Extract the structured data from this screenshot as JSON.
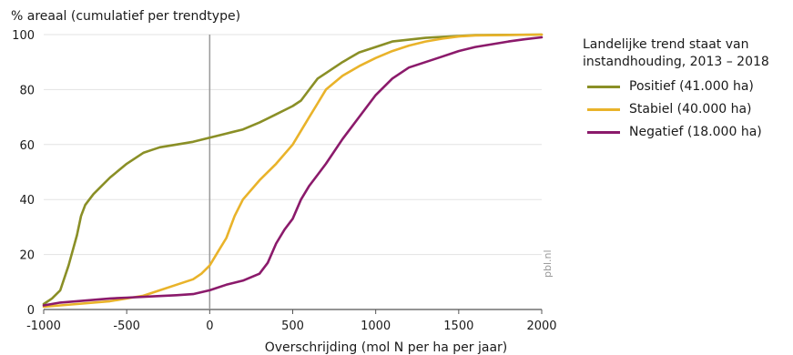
{
  "chart_data": {
    "type": "line",
    "title": "% areaal (cumulatief per trendtype)",
    "xlabel": "Overschrijding (mol N per ha per jaar)",
    "ylabel": "% areaal (cumulatief per trendtype)",
    "xlim": [
      -1000,
      2000
    ],
    "ylim": [
      0,
      100
    ],
    "x_ticks": [
      -1000,
      -500,
      0,
      500,
      1000,
      1500,
      2000
    ],
    "x_tick_labels": [
      "-1000",
      "-500",
      "0",
      "500",
      "1000",
      "1500",
      "2000"
    ],
    "y_ticks": [
      0,
      20,
      40,
      60,
      80,
      100
    ],
    "y_tick_labels": [
      "0",
      "20",
      "40",
      "60",
      "80",
      "100"
    ],
    "grid": "horizontal",
    "reference_line_x": 0,
    "legend": {
      "title": "Landelijke trend staat van instandhouding, 2013 – 2018",
      "position": "right"
    },
    "credit": "pbl.nl",
    "series": [
      {
        "name": "Positief (41.000 ha)",
        "color": "#8a8f26",
        "x": [
          -1000,
          -950,
          -900,
          -850,
          -800,
          -775,
          -750,
          -725,
          -700,
          -650,
          -600,
          -500,
          -400,
          -350,
          -300,
          -200,
          -100,
          0,
          100,
          200,
          300,
          400,
          500,
          550,
          600,
          650,
          700,
          800,
          900,
          1000,
          1100,
          1300,
          1500,
          1600,
          1800,
          2000
        ],
        "y": [
          2,
          4,
          7,
          16,
          27,
          34,
          38,
          40,
          42,
          45,
          48,
          53,
          57,
          58,
          59,
          60,
          61,
          62.5,
          64,
          65.5,
          68,
          71,
          74,
          76,
          80,
          84,
          86,
          90,
          93.5,
          95.5,
          97.5,
          98.8,
          99.5,
          99.8,
          99.9,
          100
        ]
      },
      {
        "name": "Stabiel (40.000 ha)",
        "color": "#e9b32a",
        "x": [
          -1000,
          -800,
          -600,
          -500,
          -400,
          -300,
          -200,
          -100,
          -50,
          0,
          50,
          100,
          150,
          200,
          300,
          400,
          500,
          550,
          600,
          650,
          700,
          800,
          900,
          1000,
          1100,
          1200,
          1300,
          1400,
          1500,
          1600,
          2000
        ],
        "y": [
          1,
          2,
          3,
          4,
          5,
          7,
          9,
          11,
          13,
          16,
          21,
          26,
          34,
          40,
          47,
          53,
          60,
          65,
          70,
          75,
          80,
          85,
          88.5,
          91.5,
          94,
          96,
          97.5,
          98.5,
          99.3,
          99.7,
          100
        ]
      },
      {
        "name": "Negatief (18.000 ha)",
        "color": "#8b1a6b",
        "x": [
          -1000,
          -900,
          -800,
          -700,
          -600,
          -500,
          -400,
          -300,
          -200,
          -100,
          0,
          100,
          200,
          300,
          350,
          400,
          450,
          500,
          550,
          600,
          650,
          700,
          800,
          900,
          1000,
          1100,
          1200,
          1300,
          1400,
          1500,
          1600,
          1700,
          1800,
          1900,
          2000
        ],
        "y": [
          1.5,
          2.5,
          3,
          3.5,
          4,
          4.3,
          4.6,
          4.9,
          5.2,
          5.6,
          7,
          9,
          10.5,
          13,
          17,
          24,
          29,
          33,
          40,
          45,
          49,
          53,
          62,
          70,
          78,
          84,
          88,
          90,
          92,
          94,
          95.5,
          96.5,
          97.5,
          98.3,
          99
        ]
      }
    ]
  }
}
